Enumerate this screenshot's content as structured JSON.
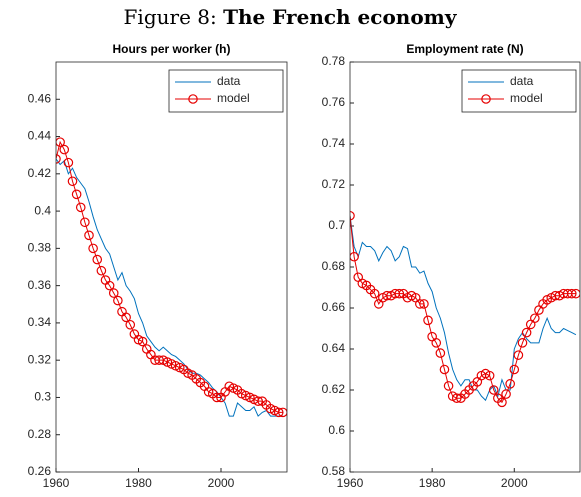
{
  "figure": {
    "label": "Figure 8:",
    "title": "The French economy"
  },
  "chart_data": [
    {
      "type": "line",
      "title": "Hours per worker (h)",
      "x": [
        1960,
        1961,
        1962,
        1963,
        1964,
        1965,
        1966,
        1967,
        1968,
        1969,
        1970,
        1971,
        1972,
        1973,
        1974,
        1975,
        1976,
        1977,
        1978,
        1979,
        1980,
        1981,
        1982,
        1983,
        1984,
        1985,
        1986,
        1987,
        1988,
        1989,
        1990,
        1991,
        1992,
        1993,
        1994,
        1995,
        1996,
        1997,
        1998,
        1999,
        2000,
        2001,
        2002,
        2003,
        2004,
        2005,
        2006,
        2007,
        2008,
        2009,
        2010,
        2011,
        2012,
        2013,
        2014,
        2015
      ],
      "series": [
        {
          "name": "data",
          "color": "#0072bd",
          "marker": null,
          "values": [
            0.428,
            0.425,
            0.427,
            0.42,
            0.423,
            0.418,
            0.415,
            0.412,
            0.405,
            0.397,
            0.39,
            0.385,
            0.38,
            0.377,
            0.37,
            0.363,
            0.367,
            0.36,
            0.357,
            0.353,
            0.345,
            0.34,
            0.333,
            0.33,
            0.327,
            0.325,
            0.327,
            0.325,
            0.323,
            0.322,
            0.32,
            0.318,
            0.315,
            0.313,
            0.313,
            0.312,
            0.31,
            0.308,
            0.305,
            0.303,
            0.3,
            0.297,
            0.29,
            0.29,
            0.297,
            0.295,
            0.293,
            0.293,
            0.295,
            0.29,
            0.292,
            0.293,
            0.29,
            0.29,
            0.29,
            0.29
          ]
        },
        {
          "name": "model",
          "color": "#e60000",
          "marker": "o",
          "values": [
            0.428,
            0.437,
            0.433,
            0.426,
            0.416,
            0.409,
            0.402,
            0.394,
            0.387,
            0.38,
            0.374,
            0.368,
            0.363,
            0.36,
            0.356,
            0.352,
            0.346,
            0.343,
            0.339,
            0.334,
            0.331,
            0.33,
            0.326,
            0.323,
            0.32,
            0.32,
            0.32,
            0.319,
            0.318,
            0.317,
            0.316,
            0.315,
            0.313,
            0.312,
            0.31,
            0.308,
            0.306,
            0.303,
            0.302,
            0.3,
            0.3,
            0.303,
            0.306,
            0.305,
            0.304,
            0.302,
            0.301,
            0.3,
            0.299,
            0.298,
            0.298,
            0.296,
            0.294,
            0.293,
            0.292,
            0.292
          ]
        }
      ],
      "xlim": [
        1960,
        2016
      ],
      "xticks": [
        1960,
        1980,
        2000
      ],
      "ylim": [
        0.26,
        0.48
      ],
      "yticks": [
        0.26,
        0.28,
        0.3,
        0.32,
        0.34,
        0.36,
        0.38,
        0.4,
        0.42,
        0.44,
        0.46
      ],
      "grid": false,
      "legend": "northeast"
    },
    {
      "type": "line",
      "title": "Employment rate (N)",
      "x": [
        1960,
        1961,
        1962,
        1963,
        1964,
        1965,
        1966,
        1967,
        1968,
        1969,
        1970,
        1971,
        1972,
        1973,
        1974,
        1975,
        1976,
        1977,
        1978,
        1979,
        1980,
        1981,
        1982,
        1983,
        1984,
        1985,
        1986,
        1987,
        1988,
        1989,
        1990,
        1991,
        1992,
        1993,
        1994,
        1995,
        1996,
        1997,
        1998,
        1999,
        2000,
        2001,
        2002,
        2003,
        2004,
        2005,
        2006,
        2007,
        2008,
        2009,
        2010,
        2011,
        2012,
        2013,
        2014,
        2015
      ],
      "series": [
        {
          "name": "data",
          "color": "#0072bd",
          "marker": null,
          "values": [
            0.705,
            0.69,
            0.685,
            0.692,
            0.69,
            0.69,
            0.688,
            0.683,
            0.687,
            0.69,
            0.688,
            0.683,
            0.685,
            0.69,
            0.689,
            0.68,
            0.68,
            0.677,
            0.678,
            0.672,
            0.668,
            0.66,
            0.655,
            0.648,
            0.638,
            0.63,
            0.625,
            0.622,
            0.625,
            0.625,
            0.62,
            0.62,
            0.617,
            0.615,
            0.62,
            0.622,
            0.617,
            0.625,
            0.62,
            0.62,
            0.64,
            0.645,
            0.648,
            0.645,
            0.643,
            0.643,
            0.643,
            0.65,
            0.655,
            0.65,
            0.648,
            0.648,
            0.65,
            0.649,
            0.648,
            0.647
          ]
        },
        {
          "name": "model",
          "color": "#e60000",
          "marker": "o",
          "values": [
            0.705,
            0.685,
            0.675,
            0.672,
            0.671,
            0.669,
            0.667,
            0.662,
            0.665,
            0.666,
            0.666,
            0.667,
            0.667,
            0.667,
            0.665,
            0.666,
            0.665,
            0.662,
            0.662,
            0.654,
            0.646,
            0.643,
            0.638,
            0.63,
            0.622,
            0.617,
            0.616,
            0.616,
            0.618,
            0.62,
            0.622,
            0.624,
            0.627,
            0.628,
            0.627,
            0.62,
            0.616,
            0.614,
            0.618,
            0.623,
            0.63,
            0.637,
            0.643,
            0.648,
            0.652,
            0.655,
            0.659,
            0.662,
            0.664,
            0.665,
            0.666,
            0.666,
            0.667,
            0.667,
            0.667,
            0.667
          ]
        }
      ],
      "xlim": [
        1960,
        2016
      ],
      "xticks": [
        1960,
        1980,
        2000
      ],
      "ylim": [
        0.58,
        0.78
      ],
      "yticks": [
        0.58,
        0.6,
        0.62,
        0.64,
        0.66,
        0.68,
        0.7,
        0.72,
        0.74,
        0.76,
        0.78
      ],
      "grid": false,
      "legend": "northeast"
    }
  ]
}
